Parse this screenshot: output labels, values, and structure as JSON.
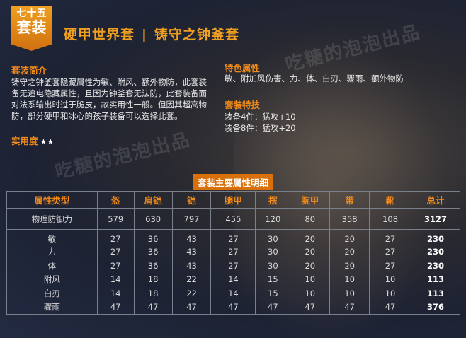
{
  "badge": {
    "line1": "七十五",
    "line2": "套装"
  },
  "header": {
    "title_left": "硬甲世界套",
    "separator": "|",
    "title_right": "铸守之钟釜套"
  },
  "intro": {
    "heading": "套装简介",
    "text": "铸守之钟釜套隐藏属性为敏、附风、额外物防，此套装备无追电隐藏属性，且因为钟釜套无法防，此套装备面对法系输出时过于脆皮，故实用性一般。但因其超高物防，部分硬甲和冰心的孩子装备可以选择此套。"
  },
  "practicality": {
    "label": "实用度",
    "stars": "★★",
    "rating": 2
  },
  "features": {
    "heading": "特色属性",
    "text": "敏、附加风伤害、力、体、白刃、骤雨、额外物防"
  },
  "skills": {
    "heading": "套装特技",
    "items": [
      "装备4件：猛攻+10",
      "装备8件：猛攻+20"
    ]
  },
  "watermark": "吃糖的泡泡出品",
  "table": {
    "title": "套装主要属性明细",
    "headers": [
      "属性类型",
      "盔",
      "肩铠",
      "铠",
      "腿甲",
      "摆",
      "腕甲",
      "带",
      "靴",
      "总计"
    ],
    "rows": [
      [
        "物理防御力",
        "579",
        "630",
        "797",
        "455",
        "120",
        "80",
        "358",
        "108",
        "3127"
      ],
      [
        "敏",
        "27",
        "36",
        "43",
        "27",
        "30",
        "20",
        "20",
        "27",
        "230"
      ],
      [
        "力",
        "27",
        "36",
        "43",
        "27",
        "30",
        "20",
        "20",
        "27",
        "230"
      ],
      [
        "体",
        "27",
        "36",
        "43",
        "27",
        "30",
        "20",
        "20",
        "27",
        "230"
      ],
      [
        "附风",
        "14",
        "18",
        "22",
        "14",
        "15",
        "10",
        "10",
        "10",
        "113"
      ],
      [
        "白刃",
        "14",
        "18",
        "22",
        "14",
        "15",
        "10",
        "10",
        "10",
        "113"
      ],
      [
        "骤雨",
        "47",
        "47",
        "47",
        "47",
        "47",
        "47",
        "47",
        "47",
        "376"
      ]
    ]
  },
  "colors": {
    "accent": "#f08a1a",
    "badge": "#e08a18",
    "text": "#e8e8e8"
  }
}
